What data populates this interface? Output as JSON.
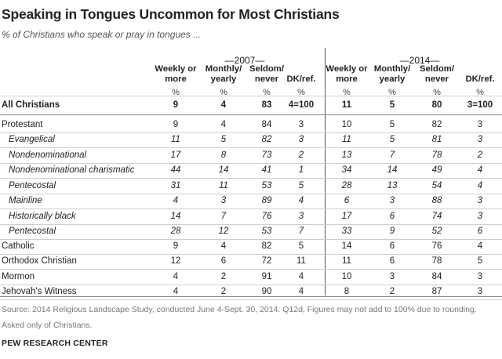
{
  "title": "Speaking in Tongues Uncommon for Most Christians",
  "subtitle": "% of Christians who speak or pray in tongues ...",
  "group_2007": "—2007—",
  "group_2014": "—2014—",
  "columns": [
    "Weekly or more",
    "Monthly/ yearly",
    "Seldom/ never",
    "DK/ref."
  ],
  "pct_symbol": "%",
  "rows": [
    {
      "label": "All Christians",
      "style": "bold",
      "v2007": [
        "9",
        "4",
        "83",
        "4=100"
      ],
      "v2014": [
        "11",
        "5",
        "80",
        "3=100"
      ]
    },
    {
      "label": "Protestant",
      "style": "normal",
      "v2007": [
        "9",
        "4",
        "84",
        "3"
      ],
      "v2014": [
        "10",
        "5",
        "82",
        "3"
      ]
    },
    {
      "label": "Evangelical",
      "style": "italic",
      "v2007": [
        "11",
        "5",
        "82",
        "3"
      ],
      "v2014": [
        "11",
        "5",
        "81",
        "3"
      ]
    },
    {
      "label": "Nondenominational",
      "style": "italic",
      "v2007": [
        "17",
        "8",
        "73",
        "2"
      ],
      "v2014": [
        "13",
        "7",
        "78",
        "2"
      ]
    },
    {
      "label": "Nondenominational charismatic",
      "style": "italic",
      "v2007": [
        "44",
        "14",
        "41",
        "1"
      ],
      "v2014": [
        "34",
        "14",
        "49",
        "4"
      ]
    },
    {
      "label": "Pentecostal",
      "style": "italic",
      "v2007": [
        "31",
        "11",
        "53",
        "5"
      ],
      "v2014": [
        "28",
        "13",
        "54",
        "4"
      ]
    },
    {
      "label": "Mainline",
      "style": "italic",
      "v2007": [
        "4",
        "3",
        "89",
        "4"
      ],
      "v2014": [
        "6",
        "3",
        "88",
        "3"
      ]
    },
    {
      "label": "Historically black",
      "style": "italic",
      "v2007": [
        "14",
        "7",
        "76",
        "3"
      ],
      "v2014": [
        "17",
        "6",
        "74",
        "3"
      ]
    },
    {
      "label": "Pentecostal",
      "style": "italic",
      "v2007": [
        "28",
        "12",
        "53",
        "7"
      ],
      "v2014": [
        "33",
        "9",
        "52",
        "6"
      ]
    },
    {
      "label": "Catholic",
      "style": "normal",
      "v2007": [
        "9",
        "4",
        "82",
        "5"
      ],
      "v2014": [
        "14",
        "6",
        "76",
        "4"
      ]
    },
    {
      "label": "Orthodox Christian",
      "style": "normal",
      "v2007": [
        "12",
        "6",
        "72",
        "11"
      ],
      "v2014": [
        "11",
        "6",
        "78",
        "5"
      ]
    },
    {
      "label": "Mormon",
      "style": "normal",
      "v2007": [
        "4",
        "2",
        "91",
        "4"
      ],
      "v2014": [
        "10",
        "3",
        "84",
        "3"
      ]
    },
    {
      "label": "Jehovah's Witness",
      "style": "normal",
      "v2007": [
        "4",
        "2",
        "90",
        "4"
      ],
      "v2014": [
        "8",
        "2",
        "87",
        "3"
      ]
    }
  ],
  "source": "Source: 2014 Religious Landscape Study, conducted June 4-Sept. 30, 2014. Q12d, Figures may not add to 100% due to rounding.",
  "note": "Asked only of Christians.",
  "brand": "PEW RESEARCH CENTER"
}
